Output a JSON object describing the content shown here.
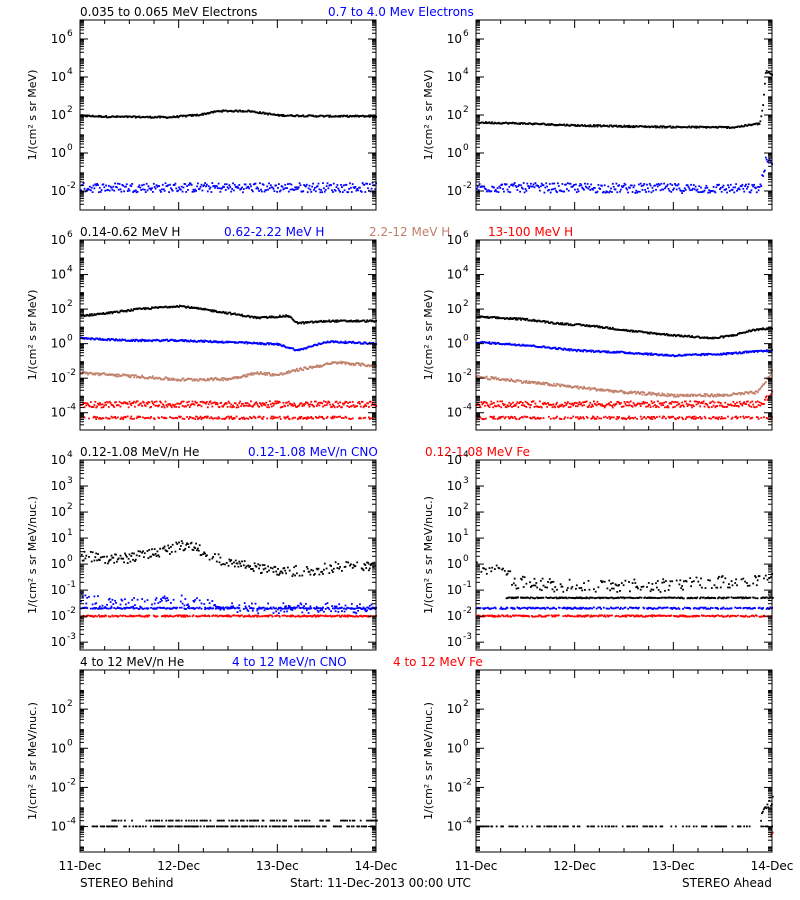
{
  "footer": {
    "left": "STEREO Behind",
    "center": "Start: 11-Dec-2013 00:00 UTC",
    "right": "STEREO Ahead"
  },
  "x_tick_labels": [
    "11-Dec",
    "12-Dec",
    "13-Dec",
    "14-Dec"
  ],
  "colors": {
    "black": "#000000",
    "blue": "#0000ff",
    "tan": "#c0806a",
    "red": "#ff0000"
  },
  "chart_data": [
    {
      "type": "scatter",
      "scale": "log",
      "ylabel": "1/(cm² s sr MeV)",
      "ylim": [
        0.001,
        10000000
      ],
      "y_ticks": [
        0.01,
        1,
        100,
        10000,
        1000000
      ],
      "y_tick_labels": [
        {
          "base": "10",
          "exp": "-2"
        },
        {
          "base": "10",
          "exp": "0"
        },
        {
          "base": "10",
          "exp": "2"
        },
        {
          "base": "10",
          "exp": "4"
        },
        {
          "base": "10",
          "exp": "6"
        }
      ],
      "legend": [
        {
          "label": "0.035 to 0.065 MeV Electrons",
          "color": "#000000"
        },
        {
          "label": "0.7 to 4.0 Mev Electrons",
          "color": "#0000ff"
        }
      ],
      "behind": [
        {
          "color": "#000000",
          "jitter": 0.04,
          "density": 1.0,
          "points": [
            [
              0,
              90
            ],
            [
              0.3,
              80
            ],
            [
              0.9,
              75
            ],
            [
              1.2,
              100
            ],
            [
              1.4,
              160
            ],
            [
              1.7,
              160
            ],
            [
              2.0,
              95
            ],
            [
              2.5,
              85
            ],
            [
              3.0,
              85
            ]
          ]
        },
        {
          "color": "#0000ff",
          "jitter": 0.25,
          "density": 1.0,
          "points": [
            [
              0,
              0.015
            ],
            [
              3.0,
              0.015
            ]
          ]
        }
      ],
      "ahead": [
        {
          "color": "#000000",
          "jitter": 0.04,
          "density": 1.0,
          "points": [
            [
              0,
              40
            ],
            [
              0.5,
              35
            ],
            [
              1.0,
              28
            ],
            [
              1.5,
              25
            ],
            [
              2.0,
              23
            ],
            [
              2.6,
              22
            ],
            [
              2.87,
              35
            ],
            [
              2.9,
              300
            ],
            [
              2.93,
              20000
            ],
            [
              3.0,
              12000
            ]
          ]
        },
        {
          "color": "#0000ff",
          "jitter": 0.25,
          "density": 1.0,
          "points": [
            [
              0,
              0.015
            ],
            [
              2.85,
              0.013
            ],
            [
              2.88,
              0.02
            ],
            [
              2.93,
              0.4
            ],
            [
              3.0,
              0.2
            ]
          ]
        }
      ]
    },
    {
      "type": "scatter",
      "scale": "log",
      "ylabel": "1/(cm² s sr MeV)",
      "ylim": [
        1e-05,
        1000000
      ],
      "y_ticks": [
        0.0001,
        0.01,
        1,
        100,
        10000,
        1000000
      ],
      "y_tick_labels": [
        {
          "base": "10",
          "exp": "-4"
        },
        {
          "base": "10",
          "exp": "-2"
        },
        {
          "base": "10",
          "exp": "0"
        },
        {
          "base": "10",
          "exp": "2"
        },
        {
          "base": "10",
          "exp": "4"
        },
        {
          "base": "10",
          "exp": "6"
        }
      ],
      "legend": [
        {
          "label": "0.14-0.62 MeV H",
          "color": "#000000"
        },
        {
          "label": "0.62-2.22 MeV H",
          "color": "#0000ff"
        },
        {
          "label": "2.2-12 MeV H",
          "color": "#c0806a"
        },
        {
          "label": "13-100 MeV H",
          "color": "#ff0000"
        }
      ],
      "behind": [
        {
          "color": "#000000",
          "jitter": 0.05,
          "density": 1.0,
          "points": [
            [
              0,
              40
            ],
            [
              0.3,
              60
            ],
            [
              0.6,
              100
            ],
            [
              1.0,
              150
            ],
            [
              1.4,
              70
            ],
            [
              1.8,
              30
            ],
            [
              2.1,
              40
            ],
            [
              2.2,
              15
            ],
            [
              2.5,
              20
            ],
            [
              3.0,
              20
            ]
          ]
        },
        {
          "color": "#0000ff",
          "jitter": 0.05,
          "density": 1.0,
          "points": [
            [
              0,
              2.0
            ],
            [
              0.5,
              1.5
            ],
            [
              1.0,
              1.5
            ],
            [
              1.5,
              1.2
            ],
            [
              2.0,
              0.9
            ],
            [
              2.2,
              0.4
            ],
            [
              2.5,
              1.3
            ],
            [
              3.0,
              1.0
            ]
          ]
        },
        {
          "color": "#c0806a",
          "jitter": 0.08,
          "density": 1.0,
          "points": [
            [
              0,
              0.02
            ],
            [
              0.6,
              0.012
            ],
            [
              1.0,
              0.008
            ],
            [
              1.5,
              0.009
            ],
            [
              1.8,
              0.02
            ],
            [
              2.0,
              0.015
            ],
            [
              2.2,
              0.03
            ],
            [
              2.6,
              0.08
            ],
            [
              3.0,
              0.05
            ]
          ]
        },
        {
          "color": "#ff0000",
          "jitter": 0.18,
          "density": 1.0,
          "points": [
            [
              0,
              0.0003
            ],
            [
              3.0,
              0.0003
            ]
          ]
        },
        {
          "color": "#ff0000",
          "jitter": 0.08,
          "density": 0.6,
          "points": [
            [
              0,
              5e-05
            ],
            [
              3.0,
              5e-05
            ]
          ]
        }
      ],
      "ahead": [
        {
          "color": "#000000",
          "jitter": 0.05,
          "density": 1.0,
          "points": [
            [
              0,
              35
            ],
            [
              0.5,
              25
            ],
            [
              0.8,
              15
            ],
            [
              1.2,
              10
            ],
            [
              1.6,
              5
            ],
            [
              2.0,
              3
            ],
            [
              2.4,
              2
            ],
            [
              2.6,
              3
            ],
            [
              2.8,
              6
            ],
            [
              3.0,
              8
            ]
          ]
        },
        {
          "color": "#0000ff",
          "jitter": 0.05,
          "density": 1.0,
          "points": [
            [
              0,
              1.2
            ],
            [
              0.5,
              0.8
            ],
            [
              1.0,
              0.4
            ],
            [
              1.5,
              0.3
            ],
            [
              2.0,
              0.2
            ],
            [
              2.5,
              0.25
            ],
            [
              3.0,
              0.4
            ]
          ]
        },
        {
          "color": "#c0806a",
          "jitter": 0.08,
          "density": 1.0,
          "points": [
            [
              0,
              0.012
            ],
            [
              0.5,
              0.006
            ],
            [
              1.0,
              0.003
            ],
            [
              1.5,
              0.0015
            ],
            [
              2.0,
              0.001
            ],
            [
              2.5,
              0.001
            ],
            [
              2.85,
              0.0015
            ],
            [
              2.95,
              0.01
            ],
            [
              3.0,
              0.03
            ]
          ]
        },
        {
          "color": "#ff0000",
          "jitter": 0.18,
          "density": 1.0,
          "points": [
            [
              0,
              0.0003
            ],
            [
              2.9,
              0.0003
            ],
            [
              2.95,
              0.0008
            ],
            [
              3.0,
              0.002
            ]
          ]
        },
        {
          "color": "#ff0000",
          "jitter": 0.08,
          "density": 0.6,
          "points": [
            [
              0,
              5e-05
            ],
            [
              3.0,
              5e-05
            ]
          ]
        }
      ]
    },
    {
      "type": "scatter",
      "scale": "log",
      "ylabel": "1/(cm² s sr MeV/nuc.)",
      "ylim": [
        0.0005,
        10000
      ],
      "y_ticks": [
        0.001,
        0.01,
        0.1,
        1,
        10,
        100,
        1000,
        10000
      ],
      "y_tick_labels": [
        {
          "base": "10",
          "exp": "-3"
        },
        {
          "base": "10",
          "exp": "-2"
        },
        {
          "base": "10",
          "exp": "-1"
        },
        {
          "base": "10",
          "exp": "0"
        },
        {
          "base": "10",
          "exp": "1"
        },
        {
          "base": "10",
          "exp": "2"
        },
        {
          "base": "10",
          "exp": "3"
        },
        {
          "base": "10",
          "exp": "4"
        }
      ],
      "legend": [
        {
          "label": "0.12-1.08 MeV/n He",
          "color": "#000000"
        },
        {
          "label": "0.12-1.08 MeV/n CNO",
          "color": "#0000ff"
        },
        {
          "label": "0.12-1.08 MeV Fe",
          "color": "#ff0000"
        }
      ],
      "behind": [
        {
          "color": "#000000",
          "jitter": 0.2,
          "density": 0.8,
          "points": [
            [
              0,
              2
            ],
            [
              0.4,
              1.5
            ],
            [
              0.8,
              3
            ],
            [
              1.1,
              6
            ],
            [
              1.3,
              2
            ],
            [
              1.6,
              0.9
            ],
            [
              2.0,
              0.5
            ],
            [
              2.4,
              0.6
            ],
            [
              2.7,
              0.9
            ],
            [
              3.0,
              0.7
            ]
          ]
        },
        {
          "color": "#0000ff",
          "jitter": 0.2,
          "density": 0.5,
          "points": [
            [
              0,
              0.05
            ],
            [
              0.3,
              0.03
            ],
            [
              1.0,
              0.04
            ],
            [
              1.2,
              0.03
            ],
            [
              1.5,
              0.02
            ],
            [
              3.0,
              0.02
            ]
          ]
        },
        {
          "color": "#0000ff",
          "jitter": 0.03,
          "density": 0.7,
          "points": [
            [
              0,
              0.02
            ],
            [
              3.0,
              0.02
            ]
          ]
        },
        {
          "color": "#ff0000",
          "jitter": 0.03,
          "density": 0.8,
          "points": [
            [
              0,
              0.01
            ],
            [
              3.0,
              0.01
            ]
          ]
        }
      ],
      "ahead": [
        {
          "color": "#000000",
          "jitter": 0.25,
          "density": 0.6,
          "points": [
            [
              0,
              1.0
            ],
            [
              0.3,
              0.4
            ],
            [
              0.4,
              0.2
            ],
            [
              0.8,
              0.15
            ],
            [
              1.5,
              0.15
            ],
            [
              2.0,
              0.15
            ],
            [
              2.5,
              0.2
            ],
            [
              3.0,
              0.3
            ]
          ]
        },
        {
          "color": "#000000",
          "jitter": 0.02,
          "density": 0.8,
          "points": [
            [
              0.3,
              0.05
            ],
            [
              3.0,
              0.05
            ]
          ]
        },
        {
          "color": "#0000ff",
          "jitter": 0.03,
          "density": 0.7,
          "points": [
            [
              0,
              0.02
            ],
            [
              3.0,
              0.02
            ]
          ]
        },
        {
          "color": "#ff0000",
          "jitter": 0.03,
          "density": 0.8,
          "points": [
            [
              0,
              0.01
            ],
            [
              3.0,
              0.01
            ]
          ]
        }
      ]
    },
    {
      "type": "scatter",
      "scale": "log",
      "ylabel": "1/(cm² s sr MeV/nuc.)",
      "ylim": [
        5e-06,
        10000
      ],
      "y_ticks": [
        0.0001,
        0.01,
        1,
        100
      ],
      "y_tick_labels": [
        {
          "base": "10",
          "exp": "-4"
        },
        {
          "base": "10",
          "exp": "-2"
        },
        {
          "base": "10",
          "exp": "0"
        },
        {
          "base": "10",
          "exp": "2"
        }
      ],
      "legend": [
        {
          "label": "4 to 12 MeV/n He",
          "color": "#000000"
        },
        {
          "label": "4 to 12 MeV/n CNO",
          "color": "#0000ff"
        },
        {
          "label": "4 to 12 MeV Fe",
          "color": "#ff0000"
        }
      ],
      "behind": [
        {
          "color": "#000000",
          "jitter": 0.0,
          "density": 0.5,
          "points": [
            [
              0,
              0.0001
            ],
            [
              3.0,
              0.0001
            ]
          ]
        },
        {
          "color": "#000000",
          "jitter": 0.0,
          "density": 0.3,
          "points": [
            [
              0.3,
              0.0002
            ],
            [
              1.0,
              0.0002
            ],
            [
              2.2,
              0.0002
            ],
            [
              3.0,
              0.0002
            ]
          ]
        }
      ],
      "ahead": [
        {
          "color": "#000000",
          "jitter": 0.0,
          "density": 0.35,
          "points": [
            [
              0,
              0.0001
            ],
            [
              3.0,
              0.0001
            ]
          ]
        },
        {
          "color": "#000000",
          "jitter": 0.3,
          "density": 1.0,
          "points": [
            [
              2.88,
              0.0002
            ],
            [
              2.93,
              0.001
            ],
            [
              3.0,
              0.003
            ]
          ]
        },
        {
          "color": "#ff0000",
          "jitter": 0.05,
          "density": 1.0,
          "points": [
            [
              2.98,
              3e-05
            ],
            [
              3.0,
              5e-05
            ]
          ]
        }
      ]
    }
  ]
}
